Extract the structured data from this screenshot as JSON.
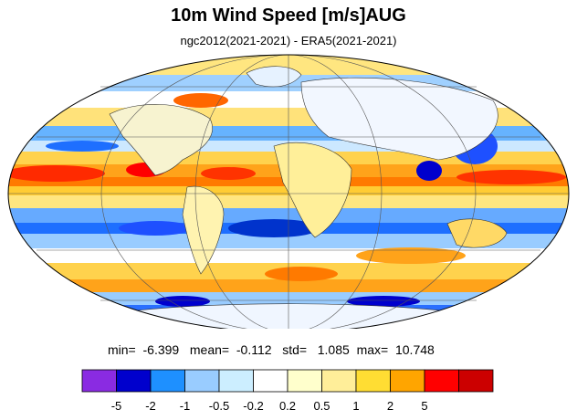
{
  "title": "10m Wind Speed [m/s]AUG",
  "subtitle": "ngc2012(2021-2021) - ERA5(2021-2021)",
  "stats": {
    "min_label": "min=",
    "min": "-6.399",
    "mean_label": "mean=",
    "mean": "-0.112",
    "std_label": "std=",
    "std": "1.085",
    "max_label": "max=",
    "max": "10.748"
  },
  "colorbar": {
    "colors": [
      "#8a2be2",
      "#0000cd",
      "#1e90ff",
      "#99ccff",
      "#cceeff",
      "#ffffff",
      "#ffffcc",
      "#ffee99",
      "#ffdd33",
      "#ffa500",
      "#ff0000",
      "#cc0000"
    ],
    "labels": [
      "-5",
      "-2",
      "-1",
      "-0.5",
      "-0.2",
      "0.2",
      "0.5",
      "1",
      "2",
      "5"
    ]
  },
  "map": {
    "projection": "mollweide",
    "ocean_bias_pattern": "alternating zonal bands of positive (red/orange) and negative (blue) differences",
    "grid": true
  }
}
